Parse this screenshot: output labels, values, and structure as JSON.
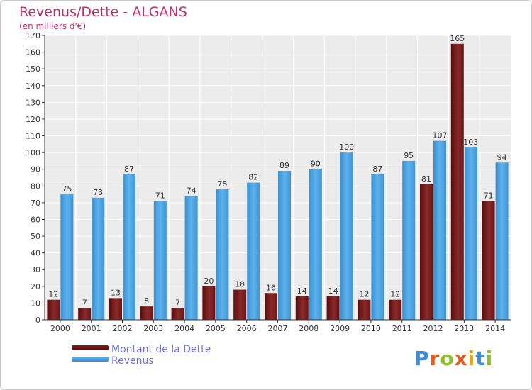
{
  "header": {
    "title": "Revenus/Dette - ALGANS",
    "subtitle": "(en milliers d'€)"
  },
  "legend": {
    "items": [
      {
        "label": "Montant de la Dette",
        "color": "#7a1c1c"
      },
      {
        "label": "Revenus",
        "color": "#4aa3e3"
      }
    ]
  },
  "brand": {
    "text": "Proxiti",
    "colors": [
      "#3a8fd8",
      "#e0602a",
      "#8cbf2a",
      "#e0602a",
      "#e0a12a",
      "#3a8fd8",
      "#8cbf2a"
    ]
  },
  "chart_data": {
    "type": "bar",
    "categories": [
      "2000",
      "2001",
      "2002",
      "2003",
      "2004",
      "2005",
      "2006",
      "2007",
      "2008",
      "2009",
      "2010",
      "2011",
      "2012",
      "2013",
      "2014"
    ],
    "series": [
      {
        "name": "Montant de la Dette",
        "color": "#7a1c1c",
        "values": [
          12,
          7,
          13,
          8,
          7,
          20,
          18,
          16,
          14,
          14,
          12,
          12,
          81,
          165,
          71
        ]
      },
      {
        "name": "Revenus",
        "color": "#4aa3e3",
        "values": [
          75,
          73,
          87,
          71,
          74,
          78,
          82,
          89,
          90,
          100,
          87,
          95,
          107,
          103,
          94
        ]
      }
    ],
    "ylim": [
      0,
      170
    ],
    "yticks": [
      0,
      10,
      20,
      30,
      40,
      50,
      60,
      70,
      80,
      90,
      100,
      110,
      120,
      130,
      140,
      150,
      160,
      170
    ],
    "grid": true,
    "legend_position": "bottom-left"
  }
}
